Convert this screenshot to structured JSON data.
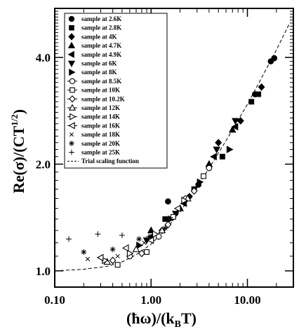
{
  "chart_data": {
    "type": "scatter",
    "xlabel": "(ħω)/(k_BT)",
    "ylabel": "Re(σ)/(CT^1/2)",
    "xscale": "log",
    "yscale": "log",
    "xlim": [
      0.1,
      30
    ],
    "ylim": [
      0.9,
      5.5
    ],
    "xticks": [
      0.1,
      1.0,
      10.0
    ],
    "xtick_labels": [
      "0.10",
      "1.00",
      "10.00"
    ],
    "yticks": [
      1.0,
      2.0,
      4.0
    ],
    "ytick_labels": [
      "1.0",
      "2.0",
      "4.0"
    ],
    "legend_position": "top-left",
    "series": [
      {
        "name": "sample at 2.6K",
        "marker": "circle-filled",
        "points": [
          [
            1.5,
            1.57
          ],
          [
            3.1,
            1.75
          ],
          [
            12.0,
            3.15
          ],
          [
            17.5,
            3.9
          ],
          [
            19.0,
            3.98
          ]
        ]
      },
      {
        "name": "sample at 2.8K",
        "marker": "square-filled",
        "points": [
          [
            1.4,
            1.4
          ],
          [
            2.8,
            1.7
          ],
          [
            5.5,
            2.1
          ],
          [
            11.0,
            3.0
          ],
          [
            13.0,
            3.15
          ]
        ]
      },
      {
        "name": "sample at 4K",
        "marker": "diamond-filled",
        "points": [
          [
            1.3,
            1.3
          ],
          [
            2.5,
            1.62
          ],
          [
            5.0,
            2.3
          ],
          [
            8.5,
            2.65
          ],
          [
            14.0,
            3.3
          ]
        ]
      },
      {
        "name": "sample at 4.7K",
        "marker": "triangle-up-filled",
        "points": [
          [
            1.0,
            1.3
          ],
          [
            2.0,
            1.5
          ],
          [
            4.0,
            2.0
          ],
          [
            7.0,
            2.5
          ]
        ]
      },
      {
        "name": "sample at 4.9K",
        "marker": "triangle-left-filled",
        "points": [
          [
            1.0,
            1.25
          ],
          [
            2.2,
            1.55
          ],
          [
            4.5,
            2.1
          ],
          [
            7.5,
            2.55
          ]
        ]
      },
      {
        "name": "sample at 6K",
        "marker": "triangle-down-filled",
        "points": [
          [
            0.9,
            1.22
          ],
          [
            1.8,
            1.45
          ],
          [
            4.8,
            2.2
          ],
          [
            7.5,
            2.65
          ]
        ]
      },
      {
        "name": "sample at 8K",
        "marker": "triangle-right-filled",
        "points": [
          [
            0.75,
            1.18
          ],
          [
            1.6,
            1.4
          ],
          [
            3.2,
            1.78
          ],
          [
            6.5,
            2.2
          ]
        ]
      },
      {
        "name": "sample at 8.5K",
        "marker": "circle-open",
        "points": [
          [
            0.6,
            1.1
          ],
          [
            1.2,
            1.25
          ],
          [
            2.3,
            1.6
          ],
          [
            4.0,
            1.95
          ]
        ]
      },
      {
        "name": "sample at 10K",
        "marker": "square-open",
        "points": [
          [
            0.45,
            1.04
          ],
          [
            0.9,
            1.13
          ],
          [
            1.7,
            1.42
          ],
          [
            3.5,
            1.85
          ]
        ]
      },
      {
        "name": "sample at 10.2K",
        "marker": "diamond-open",
        "points": [
          [
            0.4,
            1.07
          ],
          [
            0.8,
            1.12
          ],
          [
            1.5,
            1.35
          ],
          [
            2.8,
            1.68
          ]
        ]
      },
      {
        "name": "sample at 12K",
        "marker": "triangle-up-open",
        "points": [
          [
            0.35,
            1.06
          ],
          [
            0.7,
            1.15
          ],
          [
            1.3,
            1.3
          ],
          [
            2.4,
            1.6
          ]
        ]
      },
      {
        "name": "sample at 14K",
        "marker": "triangle-right-open",
        "points": [
          [
            0.33,
            1.07
          ],
          [
            0.6,
            1.12
          ],
          [
            1.1,
            1.27
          ],
          [
            2.2,
            1.58
          ]
        ]
      },
      {
        "name": "sample at 16K",
        "marker": "triangle-left-open",
        "points": [
          [
            0.3,
            1.09
          ],
          [
            0.55,
            1.16
          ],
          [
            1.0,
            1.22
          ],
          [
            1.9,
            1.5
          ]
        ]
      },
      {
        "name": "sample at 18K",
        "marker": "x",
        "points": [
          [
            0.22,
            1.08
          ],
          [
            0.45,
            1.1
          ],
          [
            0.85,
            1.2
          ],
          [
            1.6,
            1.4
          ]
        ]
      },
      {
        "name": "sample at 20K",
        "marker": "asterisk",
        "points": [
          [
            0.2,
            1.13
          ],
          [
            0.4,
            1.15
          ],
          [
            0.75,
            1.23
          ],
          [
            1.4,
            1.32
          ]
        ]
      },
      {
        "name": "sample at 25K",
        "marker": "plus",
        "points": [
          [
            0.14,
            1.23
          ],
          [
            0.28,
            1.27
          ],
          [
            0.5,
            1.26
          ],
          [
            0.95,
            1.25
          ]
        ]
      }
    ],
    "trial_curve": {
      "name": "Trial scaling function",
      "style": "dashed",
      "points": [
        [
          0.1,
          1.0
        ],
        [
          0.2,
          1.01
        ],
        [
          0.35,
          1.03
        ],
        [
          0.5,
          1.06
        ],
        [
          0.7,
          1.11
        ],
        [
          1.0,
          1.19
        ],
        [
          1.5,
          1.33
        ],
        [
          2.0,
          1.47
        ],
        [
          3.0,
          1.72
        ],
        [
          4.5,
          2.05
        ],
        [
          6.0,
          2.33
        ],
        [
          8.0,
          2.66
        ],
        [
          10.0,
          2.95
        ],
        [
          14.0,
          3.5
        ],
        [
          20.0,
          4.2
        ],
        [
          27.0,
          4.95
        ]
      ]
    }
  }
}
